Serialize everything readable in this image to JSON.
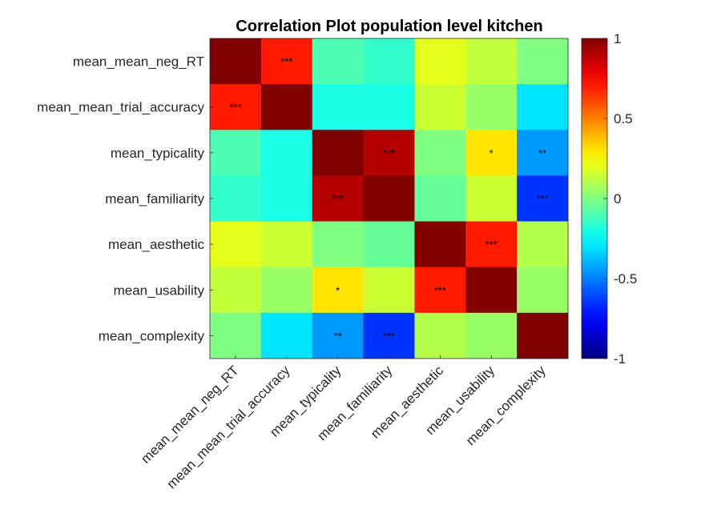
{
  "chart_data": {
    "type": "heatmap",
    "title": "Correlation Plot population level kitchen",
    "labels": [
      "mean_mean_neg_RT",
      "mean_mean_trial_accuracy",
      "mean_typicality",
      "mean_familiarity",
      "mean_aesthetic",
      "mean_usability",
      "mean_complexity"
    ],
    "values": [
      [
        1.0,
        0.7,
        -0.1,
        -0.15,
        0.2,
        0.13,
        0.0
      ],
      [
        0.7,
        1.0,
        -0.2,
        -0.2,
        0.15,
        0.05,
        -0.3
      ],
      [
        -0.1,
        -0.2,
        1.0,
        0.9,
        0.0,
        0.3,
        -0.45
      ],
      [
        -0.15,
        -0.2,
        0.9,
        1.0,
        -0.05,
        0.15,
        -0.65
      ],
      [
        0.2,
        0.15,
        0.0,
        -0.05,
        1.0,
        0.7,
        0.1
      ],
      [
        0.13,
        0.05,
        0.3,
        0.15,
        0.7,
        1.0,
        0.05
      ],
      [
        0.0,
        -0.3,
        -0.45,
        -0.65,
        0.1,
        0.05,
        1.0
      ]
    ],
    "significance": [
      [
        "",
        "***",
        "",
        "",
        "",
        "",
        ""
      ],
      [
        "***",
        "",
        "",
        "",
        "",
        "",
        ""
      ],
      [
        "",
        "",
        "",
        "***",
        "",
        "*",
        "**"
      ],
      [
        "",
        "",
        "***",
        "",
        "",
        "",
        "***"
      ],
      [
        "",
        "",
        "",
        "",
        "",
        "***",
        ""
      ],
      [
        "",
        "",
        "*",
        "",
        "***",
        "",
        ""
      ],
      [
        "",
        "",
        "**",
        "***",
        "",
        "",
        ""
      ]
    ],
    "colorbar": {
      "colormap": "jet",
      "range": [
        -1,
        1
      ],
      "ticks": [
        -1,
        -0.5,
        0,
        0.5,
        1
      ],
      "tick_labels": [
        "-1",
        "-0.5",
        "0",
        "0.5",
        "1"
      ]
    }
  }
}
